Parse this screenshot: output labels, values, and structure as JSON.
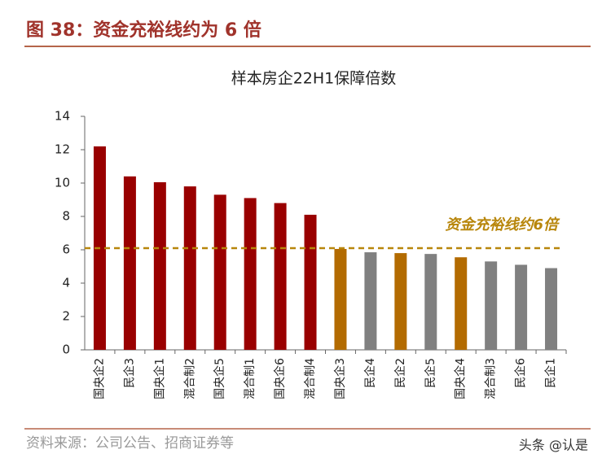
{
  "header": {
    "title": "图 38：资金充裕线约为 6 倍"
  },
  "chart_data": {
    "type": "bar",
    "title": "样本房企22H1保障倍数",
    "categories": [
      "国央企2",
      "民企3",
      "国央企1",
      "混合制2",
      "国央企5",
      "混合制1",
      "国央企6",
      "混合制4",
      "国央企3",
      "民企4",
      "民企2",
      "民企5",
      "国央企4",
      "混合制3",
      "民企6",
      "民企1"
    ],
    "values": [
      12.2,
      10.4,
      10.05,
      9.8,
      9.3,
      9.1,
      8.8,
      8.1,
      6.05,
      5.85,
      5.8,
      5.75,
      5.55,
      5.3,
      5.1,
      4.9
    ],
    "colors": [
      "#990000",
      "#990000",
      "#990000",
      "#990000",
      "#990000",
      "#990000",
      "#990000",
      "#990000",
      "#b36b00",
      "#808080",
      "#b36b00",
      "#808080",
      "#b36b00",
      "#808080",
      "#808080",
      "#808080"
    ],
    "ylim": [
      0,
      14
    ],
    "yticks": [
      0,
      2,
      4,
      6,
      8,
      10,
      12,
      14
    ],
    "grid": false,
    "reference_line": {
      "value": 6.1,
      "label": "资金充裕线约6倍",
      "color": "#b8860b"
    }
  },
  "footer": {
    "source": "资料来源：公司公告、招商证券等",
    "watermark": "头条 @认是"
  }
}
